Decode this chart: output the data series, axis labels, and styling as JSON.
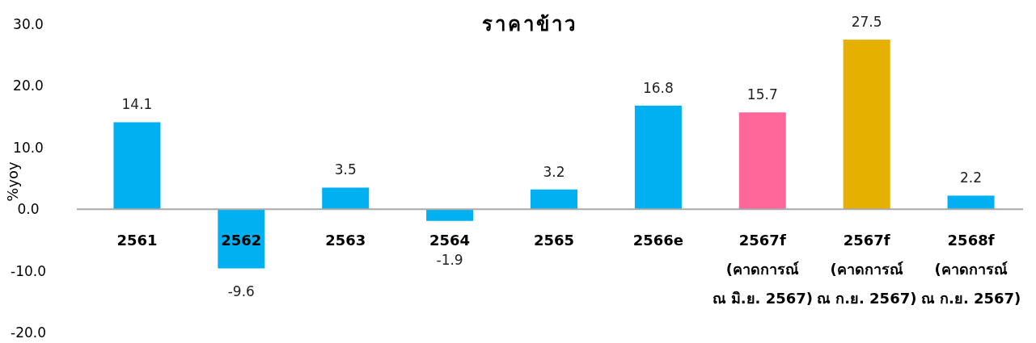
{
  "chart_data": {
    "type": "bar",
    "title": "ราคาข้าว",
    "ylabel": "%yoy",
    "categories": [
      "2561",
      "2562",
      "2563",
      "2564",
      "2565",
      "2566e",
      "2567f\n(คาดการณ์\nณ มิ.ย. 2567)",
      "2567f\n(คาดการณ์\nณ ก.ย. 2567)",
      "2568f\n(คาดการณ์\nณ ก.ย. 2567)"
    ],
    "values": [
      14.1,
      -9.6,
      3.5,
      -1.9,
      3.2,
      16.8,
      15.7,
      27.5,
      2.2
    ],
    "colors": [
      "#00b0f0",
      "#00b0f0",
      "#00b0f0",
      "#00b0f0",
      "#00b0f0",
      "#00b0f0",
      "#ff6699",
      "#e6b000",
      "#00b0f0"
    ],
    "ylim": [
      -20,
      30
    ],
    "yticks": [
      {
        "value": -20,
        "label": "-20.0"
      },
      {
        "value": -10,
        "label": "-10.0"
      },
      {
        "value": 0,
        "label": "0.0"
      },
      {
        "value": 10,
        "label": "10.0"
      },
      {
        "value": 20,
        "label": "20.0"
      },
      {
        "value": 30,
        "label": "30.0"
      }
    ],
    "data_labels": true,
    "grid": false
  }
}
